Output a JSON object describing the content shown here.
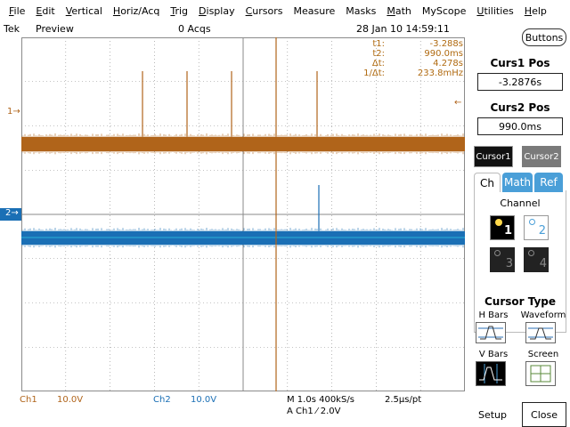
{
  "menu": [
    {
      "label": "File",
      "mnemonic": "F",
      "rest": "ile"
    },
    {
      "label": "Edit",
      "mnemonic": "E",
      "rest": "dit"
    },
    {
      "label": "Vertical",
      "mnemonic": "V",
      "rest": "ertical"
    },
    {
      "label": "Horiz/Acq",
      "mnemonic": "H",
      "rest": "oriz/Acq"
    },
    {
      "label": "Trig",
      "mnemonic": "T",
      "rest": "rig"
    },
    {
      "label": "Display",
      "mnemonic": "D",
      "rest": "isplay"
    },
    {
      "label": "Cursors",
      "mnemonic": "C",
      "rest": "ursors"
    },
    {
      "label": "Measure",
      "mnemonic": "",
      "rest": "Measure"
    },
    {
      "label": "Masks",
      "mnemonic": "",
      "rest": "Masks"
    },
    {
      "label": "Math",
      "mnemonic": "M",
      "rest": "ath"
    },
    {
      "label": "MyScope",
      "mnemonic": "",
      "rest": "MyScope"
    },
    {
      "label": "Utilities",
      "mnemonic": "U",
      "rest": "tilities"
    },
    {
      "label": "Help",
      "mnemonic": "H",
      "rest": "elp"
    }
  ],
  "status": {
    "brand": "Tek",
    "mode": "Preview",
    "acqs": "0 Acqs",
    "datetime": "28 Jan 10 14:59:11"
  },
  "buttons_toggle": "Buttons",
  "readout": [
    {
      "label": "t1:",
      "value": "-3.288s"
    },
    {
      "label": "t2:",
      "value": "990.0ms"
    },
    {
      "label": "Δt:",
      "value": "4.278s"
    },
    {
      "label": "1/Δt:",
      "value": "233.8mHz"
    }
  ],
  "markers": {
    "ch1": "1",
    "ch2": "2"
  },
  "bottom": {
    "ch1_label": "Ch1",
    "ch1_scale": "10.0V",
    "ch2_label": "Ch2",
    "ch2_scale": "10.0V",
    "timebase": "M 1.0s 400kS/s",
    "per_point": "2.5μs/pt",
    "trigger": "A  Ch1  ⁄  2.0V"
  },
  "panel": {
    "curs1_title": "Curs1 Pos",
    "curs1_value": "-3.2876s",
    "curs2_title": "Curs2 Pos",
    "curs2_value": "990.0ms",
    "cursor1_btn": "Cursor1",
    "cursor2_btn": "Cursor2",
    "tabs": [
      "Ch",
      "Math",
      "Ref"
    ],
    "channel_label": "Channel",
    "channels": [
      "1",
      "2",
      "3",
      "4"
    ],
    "cursor_type_title": "Cursor Type",
    "cursor_types": [
      "H Bars",
      "Waveform",
      "V Bars",
      "Screen"
    ],
    "setup": "Setup",
    "close": "Close"
  },
  "colors": {
    "ch1": "#b0641a",
    "ch2": "#1a6fb5",
    "grid": "#8a8a8a",
    "selected_btn": "#111111",
    "unselected_btn": "#7a7a7a",
    "active_tab": "#4a9fd8"
  }
}
